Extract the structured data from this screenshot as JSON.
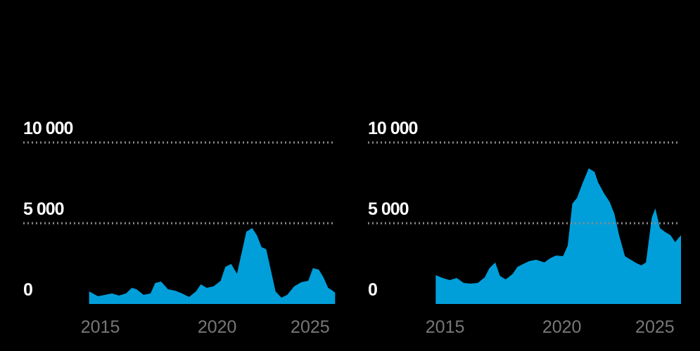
{
  "chart_data": [
    {
      "type": "area",
      "color": "#009fda",
      "x": [
        2014.52,
        2014.9,
        2015.2,
        2015.5,
        2015.8,
        2016.1,
        2016.35,
        2016.55,
        2016.85,
        2017.15,
        2017.35,
        2017.6,
        2017.9,
        2018.2,
        2018.5,
        2018.8,
        2019.1,
        2019.3,
        2019.55,
        2019.85,
        2020.15,
        2020.35,
        2020.6,
        2020.85,
        2021.05,
        2021.25,
        2021.5,
        2021.7,
        2021.9,
        2022.1,
        2022.3,
        2022.5,
        2022.75,
        2023.0,
        2023.3,
        2023.6,
        2023.9,
        2024.1,
        2024.35,
        2024.55,
        2024.75,
        2024.9,
        2025.05
      ],
      "values": [
        780,
        480,
        565,
        650,
        520,
        650,
        1000,
        910,
        565,
        650,
        1300,
        1390,
        910,
        825,
        650,
        435,
        780,
        1220,
        1000,
        1090,
        1435,
        2300,
        2480,
        1870,
        3175,
        4480,
        4700,
        4260,
        3520,
        3390,
        2090,
        780,
        390,
        565,
        1090,
        1350,
        1435,
        2220,
        2130,
        1650,
        1000,
        870,
        700
      ],
      "xlim": [
        2011.7,
        2025.1
      ],
      "xticks": [
        2015,
        2020,
        2025
      ],
      "ylim": [
        0,
        10000
      ],
      "yticks": [
        0,
        {
          "value": 5000,
          "label": "5 000"
        },
        {
          "value": 10000,
          "label": "10 000"
        }
      ],
      "grid": true
    },
    {
      "type": "area",
      "color": "#009fda",
      "x": [
        2014.6,
        2014.9,
        2015.2,
        2015.5,
        2015.8,
        2016.1,
        2016.4,
        2016.7,
        2016.9,
        2017.15,
        2017.35,
        2017.6,
        2017.9,
        2018.1,
        2018.35,
        2018.6,
        2018.9,
        2019.25,
        2019.5,
        2019.75,
        2020.05,
        2020.25,
        2020.45,
        2020.65,
        2020.9,
        2021.15,
        2021.4,
        2021.55,
        2021.8,
        2022.05,
        2022.25,
        2022.45,
        2022.7,
        2022.95,
        2023.2,
        2023.4,
        2023.6,
        2023.85,
        2024.0,
        2024.2,
        2024.4,
        2024.65,
        2024.85,
        2025.1
      ],
      "values": [
        1780,
        1610,
        1480,
        1610,
        1300,
        1260,
        1300,
        1650,
        2220,
        2570,
        1740,
        1520,
        1870,
        2300,
        2480,
        2650,
        2740,
        2570,
        2830,
        3000,
        2960,
        3610,
        6220,
        6570,
        7530,
        8400,
        8180,
        7530,
        6870,
        6310,
        5570,
        4260,
        2960,
        2740,
        2520,
        2390,
        2570,
        5350,
        5920,
        4700,
        4480,
        4260,
        3830,
        4260
      ],
      "xlim": [
        2011.7,
        2025.1
      ],
      "xticks": [
        2015,
        2020,
        2025
      ],
      "ylim": [
        0,
        10000
      ],
      "yticks": [
        0,
        {
          "value": 5000,
          "label": "5 000"
        },
        {
          "value": 10000,
          "label": "10 000"
        }
      ],
      "grid": true
    }
  ]
}
